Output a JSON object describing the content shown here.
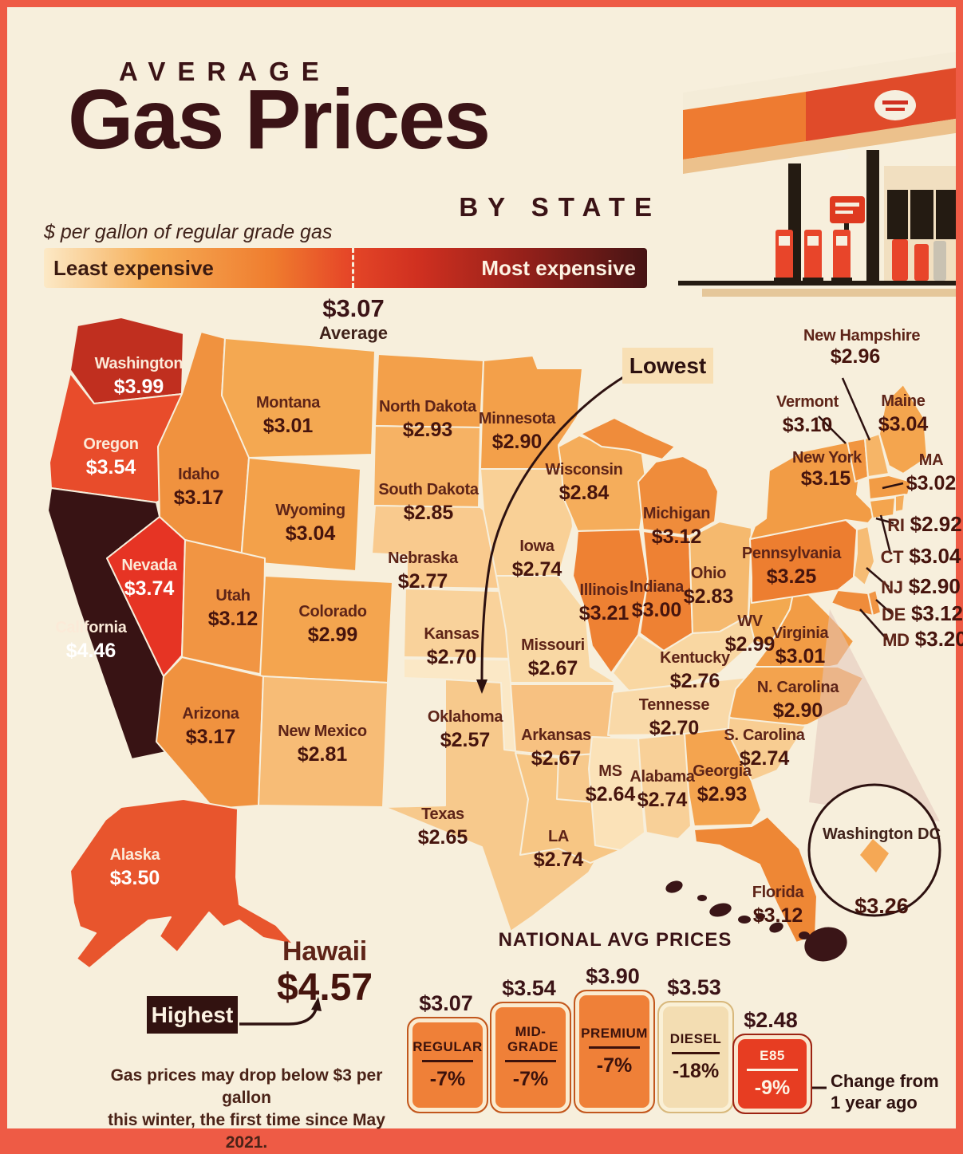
{
  "title": {
    "kicker": "AVERAGE",
    "main": "Gas Prices",
    "sub": "BY STATE"
  },
  "subtitle": "$ per gallon of regular grade gas",
  "legend": {
    "left_label": "Least expensive",
    "right_label": "Most expensive",
    "average_price": "$3.07",
    "average_label": "Average",
    "gradient": [
      "#fce9c6",
      "#f6ad56",
      "#ef7c2e",
      "#e64828",
      "#d03020",
      "#93201a",
      "#461414"
    ]
  },
  "annotations": {
    "lowest_label": "Lowest",
    "highest_label": "Highest",
    "change_note_line1": "Change from",
    "change_note_line2": "1 year ago"
  },
  "note": {
    "line1": "Gas prices may drop below $3 per gallon",
    "line2": "this winter, the first time since May 2021."
  },
  "map": {
    "dc": {
      "name": "Washington DC",
      "price": "$3.26",
      "color": "#f5a855"
    },
    "states": [
      {
        "abbr": "WA",
        "name": "Washington",
        "price": "$3.99",
        "color": "#c02f1f"
      },
      {
        "abbr": "OR",
        "name": "Oregon",
        "price": "$3.54",
        "color": "#e84c2b"
      },
      {
        "abbr": "CA",
        "name": "California",
        "price": "$4.46",
        "color": "#381314"
      },
      {
        "abbr": "NV",
        "name": "Nevada",
        "price": "$3.74",
        "color": "#e63424"
      },
      {
        "abbr": "ID",
        "name": "Idaho",
        "price": "$3.17",
        "color": "#f0923f"
      },
      {
        "abbr": "MT",
        "name": "Montana",
        "price": "$3.01",
        "color": "#f4a851"
      },
      {
        "abbr": "WY",
        "name": "Wyoming",
        "price": "$3.04",
        "color": "#f3a14a"
      },
      {
        "abbr": "UT",
        "name": "Utah",
        "price": "$3.12",
        "color": "#f19543"
      },
      {
        "abbr": "CO",
        "name": "Colorado",
        "price": "$2.99",
        "color": "#f4a54f"
      },
      {
        "abbr": "AZ",
        "name": "Arizona",
        "price": "$3.17",
        "color": "#f0923f"
      },
      {
        "abbr": "NM",
        "name": "New Mexico",
        "price": "$2.81",
        "color": "#f7bc76"
      },
      {
        "abbr": "ND",
        "name": "North Dakota",
        "price": "$2.93",
        "color": "#f3a04a"
      },
      {
        "abbr": "SD",
        "name": "South Dakota",
        "price": "$2.85",
        "color": "#f6b264"
      },
      {
        "abbr": "NE",
        "name": "Nebraska",
        "price": "$2.77",
        "color": "#f9ca8e"
      },
      {
        "abbr": "KS",
        "name": "Kansas",
        "price": "$2.70",
        "color": "#f9d29b"
      },
      {
        "abbr": "OK",
        "name": "Oklahoma",
        "price": "$2.57",
        "color": "#fbe8c6"
      },
      {
        "abbr": "TX",
        "name": "Texas",
        "price": "$2.65",
        "color": "#f7c98c"
      },
      {
        "abbr": "MN",
        "name": "Minnesota",
        "price": "$2.90",
        "color": "#f3a04a"
      },
      {
        "abbr": "IA",
        "name": "Iowa",
        "price": "$2.74",
        "color": "#f9d096"
      },
      {
        "abbr": "MO",
        "name": "Missouri",
        "price": "$2.67",
        "color": "#f9d8a4"
      },
      {
        "abbr": "AR",
        "name": "Arkansas",
        "price": "$2.67",
        "color": "#f7c181"
      },
      {
        "abbr": "LA",
        "name": "LA",
        "price": "$2.74",
        "color": "#f7c684"
      },
      {
        "abbr": "WI",
        "name": "Wisconsin",
        "price": "$2.84",
        "color": "#f5ad5b"
      },
      {
        "abbr": "IL",
        "name": "Illinois",
        "price": "$3.21",
        "color": "#ee8133"
      },
      {
        "abbr": "MI",
        "name": "Michigan",
        "price": "$3.12",
        "color": "#ef8c3b"
      },
      {
        "abbr": "IN",
        "name": "Indiana",
        "price": "$3.00",
        "color": "#ee8133"
      },
      {
        "abbr": "OH",
        "name": "Ohio",
        "price": "$2.83",
        "color": "#f5b96e"
      },
      {
        "abbr": "KY",
        "name": "Kentucky",
        "price": "$2.76",
        "color": "#f9d7a2"
      },
      {
        "abbr": "TN",
        "name": "Tennesse",
        "price": "$2.70",
        "color": "#f9d9a8"
      },
      {
        "abbr": "WV",
        "name": "WV",
        "price": "$2.99",
        "color": "#f3a950"
      },
      {
        "abbr": "VA",
        "name": "Virginia",
        "price": "$3.01",
        "color": "#f29c45"
      },
      {
        "abbr": "NC",
        "name": "N. Carolina",
        "price": "$2.90",
        "color": "#f3a34e"
      },
      {
        "abbr": "SC",
        "name": "S. Carolina",
        "price": "$2.74",
        "color": "#f8cd92"
      },
      {
        "abbr": "GA",
        "name": "Georgia",
        "price": "$2.93",
        "color": "#f4a44f"
      },
      {
        "abbr": "AL",
        "name": "Alabama",
        "price": "$2.74",
        "color": "#f8d098"
      },
      {
        "abbr": "MS",
        "name": "MS",
        "price": "$2.64",
        "color": "#fbe2b8"
      },
      {
        "abbr": "FL",
        "name": "Florida",
        "price": "$3.12",
        "color": "#ee8735"
      },
      {
        "abbr": "PA",
        "name": "Pennsylvania",
        "price": "$3.25",
        "color": "#ed7e30"
      },
      {
        "abbr": "NY",
        "name": "New York",
        "price": "$3.15",
        "color": "#f29c45"
      },
      {
        "abbr": "VT",
        "name": "Vermont",
        "price": "$3.10",
        "color": "#f1953f"
      },
      {
        "abbr": "NH",
        "name": "New Hampshire",
        "price": "$2.96",
        "color": "#f6b567"
      },
      {
        "abbr": "ME",
        "name": "Maine",
        "price": "$3.04",
        "color": "#f4a54e"
      },
      {
        "abbr": "MA",
        "name": "MA",
        "price": "$3.02",
        "color": "#f29c45"
      },
      {
        "abbr": "RI",
        "name": "RI",
        "price": "$2.92",
        "color": "#f5ad5b"
      },
      {
        "abbr": "CT",
        "name": "CT",
        "price": "$3.04",
        "color": "#f4a54e"
      },
      {
        "abbr": "NJ",
        "name": "NJ",
        "price": "$2.90",
        "color": "#f6bc74"
      },
      {
        "abbr": "DE",
        "name": "DE",
        "price": "$3.12",
        "color": "#f19543"
      },
      {
        "abbr": "MD",
        "name": "MD",
        "price": "$3.20",
        "color": "#ef8c3b"
      },
      {
        "abbr": "AK",
        "name": "Alaska",
        "price": "$3.50",
        "color": "#e8552d"
      },
      {
        "abbr": "HI",
        "name": "Hawaii",
        "price": "$4.57",
        "color": "#3a1517"
      }
    ]
  },
  "national": {
    "heading": "NATIONAL AVG PRICES",
    "pumps": [
      {
        "name": "REGULAR",
        "price": "$3.07",
        "change": "-7%",
        "color": "#ef8038",
        "border": "#c2571d"
      },
      {
        "name": "MID-GRADE",
        "price": "$3.54",
        "change": "-7%",
        "color": "#ef8038",
        "border": "#c2571d"
      },
      {
        "name": "PREMIUM",
        "price": "$3.90",
        "change": "-7%",
        "color": "#ef8038",
        "border": "#c2571d"
      },
      {
        "name": "DIESEL",
        "price": "$3.53",
        "change": "-18%",
        "color": "#f3ddb2",
        "border": "#d8b87c"
      },
      {
        "name": "E85",
        "price": "$2.48",
        "change": "-9%",
        "color": "#e73d22",
        "border": "#9c2312"
      }
    ]
  }
}
